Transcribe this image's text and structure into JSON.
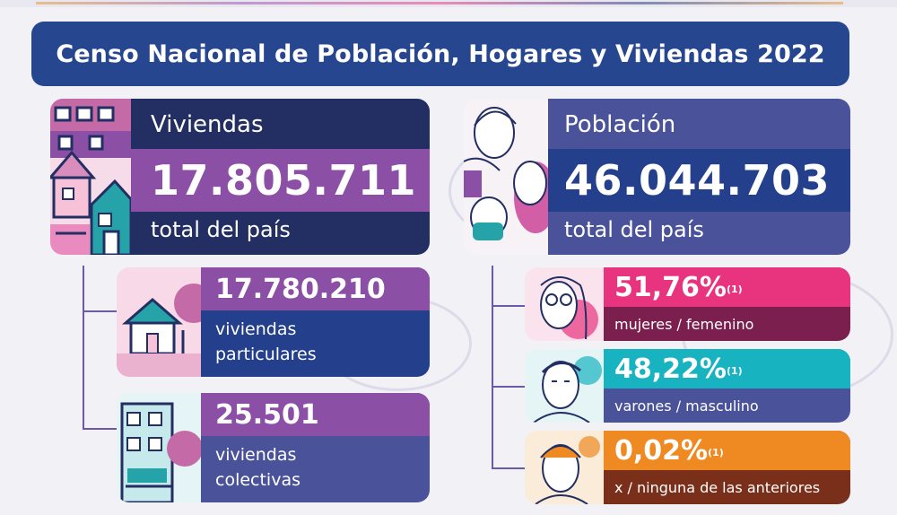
{
  "title": "Censo Nacional de Población, Hogares y Viviendas 2022",
  "viviendas": {
    "label": "Viviendas",
    "value": "17.805.711",
    "subtitle": "total del país",
    "particulares": {
      "value": "17.780.210",
      "label_line1": "viviendas",
      "label_line2": "particulares"
    },
    "colectivas": {
      "value": "25.501",
      "label_line1": "viviendas",
      "label_line2": "colectivas"
    }
  },
  "poblacion": {
    "label": "Población",
    "value": "46.044.703",
    "subtitle": "total del país",
    "mujeres": {
      "value": "51,76%",
      "note": "(1)",
      "label": "mujeres / femenino"
    },
    "varones": {
      "value": "48,22%",
      "note": "(1)",
      "label": "varones / masculino"
    },
    "ninguna": {
      "value": "0,02%",
      "note": "(1)",
      "label": "x / ninguna de las anteriores"
    }
  },
  "colors": {
    "title_bg": "#26468f",
    "navy": "#232f63",
    "purple": "#8b4fa6",
    "indigo": "#4a5299",
    "blue": "#243f8c",
    "pink": "#e8337f",
    "pink_dark": "#7a1f4e",
    "teal": "#17b3c1",
    "orange": "#ee8a21",
    "orange_dark": "#7a2f1a"
  },
  "icons": [
    "buildings-illustration",
    "people-faces-illustration",
    "house-icon",
    "building-icon",
    "woman-face-icon",
    "man-face-icon",
    "person-face-icon"
  ]
}
